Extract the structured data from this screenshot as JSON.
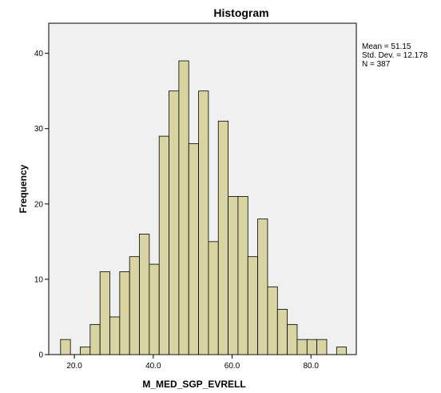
{
  "chart_data": {
    "type": "bar",
    "subtype": "histogram",
    "title": "Histogram",
    "xlabel": "M_MED_SGP_EVRELL",
    "ylabel": "Frequency",
    "xlim": [
      13.5,
      91.5
    ],
    "ylim": [
      0,
      44
    ],
    "x_ticks": [
      20,
      40,
      60,
      80
    ],
    "x_tick_labels": [
      "20.0",
      "40.0",
      "60.0",
      "80.0"
    ],
    "y_ticks": [
      0,
      10,
      20,
      30,
      40
    ],
    "y_tick_labels": [
      "0",
      "10",
      "20",
      "30",
      "40"
    ],
    "bin_start": 16.5,
    "bin_width": 2.5,
    "values": [
      2,
      0,
      1,
      4,
      11,
      5,
      11,
      13,
      16,
      12,
      29,
      35,
      39,
      28,
      35,
      15,
      31,
      21,
      21,
      13,
      18,
      9,
      6,
      4,
      2,
      2,
      2,
      0,
      1
    ],
    "bar_fill": "#d9d5a3",
    "bar_stroke": "#000000",
    "plot_background": "#f0f0f0",
    "grid": false,
    "stats": {
      "mean": "Mean = 51.15",
      "std_dev": "Std. Dev. = 12.178",
      "n": "N = 387"
    }
  }
}
